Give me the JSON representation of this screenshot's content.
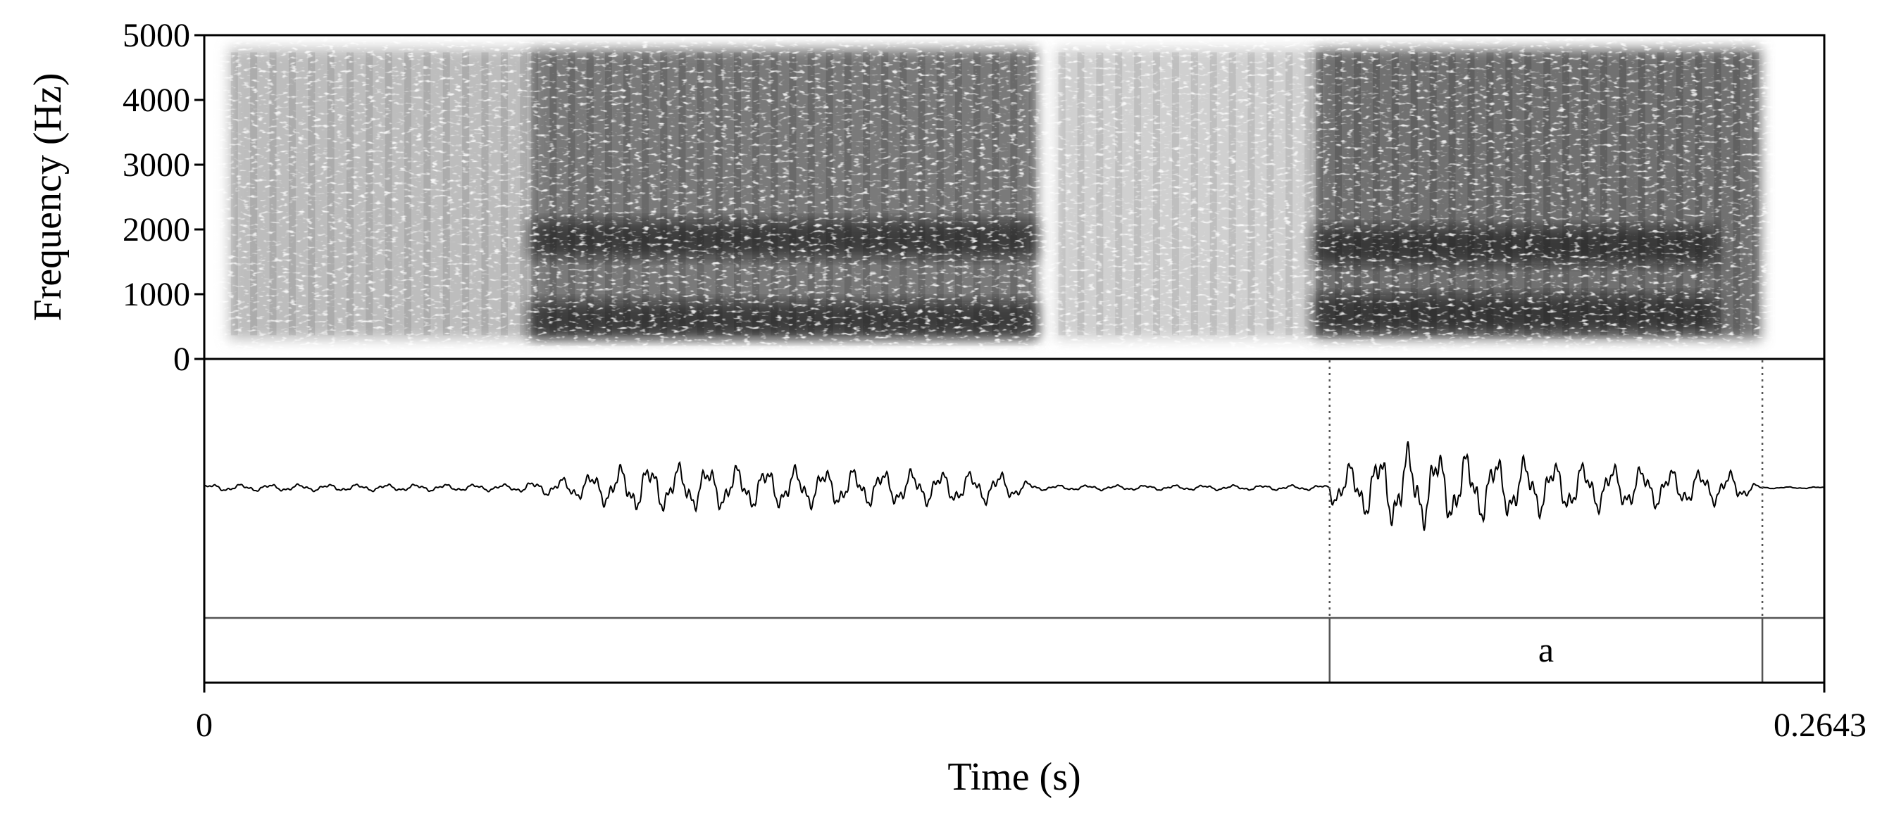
{
  "chart_data": [
    {
      "type": "spectrogram",
      "ylabel": "Frequency (Hz)",
      "ylim": [
        0,
        5000
      ],
      "yticks": [
        0,
        1000,
        2000,
        3000,
        4000,
        5000
      ],
      "xlim": [
        0,
        0.2643
      ],
      "grid": false,
      "energy_regions": [
        {
          "t_start": 0.004,
          "t_end": 0.053,
          "band_hz": [
            300,
            4800
          ],
          "darkness": 0.35
        },
        {
          "t_start": 0.053,
          "t_end": 0.136,
          "band_hz": [
            300,
            4800
          ],
          "darkness": 0.7
        },
        {
          "t_start": 0.139,
          "t_end": 0.181,
          "band_hz": [
            300,
            4800
          ],
          "darkness": 0.25
        },
        {
          "t_start": 0.181,
          "t_end": 0.254,
          "band_hz": [
            300,
            4800
          ],
          "darkness": 0.75
        }
      ],
      "formant_bands": [
        {
          "t_start": 0.053,
          "t_end": 0.136,
          "freq_hz": 600
        },
        {
          "t_start": 0.053,
          "t_end": 0.136,
          "freq_hz": 1850
        },
        {
          "t_start": 0.181,
          "t_end": 0.247,
          "freq_hz": 700
        },
        {
          "t_start": 0.181,
          "t_end": 0.247,
          "freq_hz": 1750
        }
      ]
    },
    {
      "type": "waveform",
      "xlim": [
        0,
        0.2643
      ],
      "amplitude_envelope": [
        {
          "t": 0.0,
          "a": 0.08
        },
        {
          "t": 0.05,
          "a": 0.08
        },
        {
          "t": 0.06,
          "a": 0.25
        },
        {
          "t": 0.07,
          "a": 0.55
        },
        {
          "t": 0.1,
          "a": 0.45
        },
        {
          "t": 0.13,
          "a": 0.35
        },
        {
          "t": 0.136,
          "a": 0.06
        },
        {
          "t": 0.183,
          "a": 0.06
        },
        {
          "t": 0.184,
          "a": 0.4
        },
        {
          "t": 0.195,
          "a": 0.95
        },
        {
          "t": 0.22,
          "a": 0.6
        },
        {
          "t": 0.25,
          "a": 0.35
        },
        {
          "t": 0.254,
          "a": 0.02
        },
        {
          "t": 0.2643,
          "a": 0.02
        }
      ]
    },
    {
      "type": "annotation-tier",
      "intervals": [
        {
          "label": "",
          "start": 0,
          "end": 0.1836
        },
        {
          "label": "a",
          "start": 0.1836,
          "end": 0.2542
        },
        {
          "label": "",
          "start": 0.2542,
          "end": 0.2643
        }
      ],
      "boundaries": [
        0.1836,
        0.2542
      ]
    }
  ],
  "x_axis": {
    "title": "Time (s)",
    "start_label": "0",
    "end_label": "0.2643"
  },
  "y_axis": {
    "title": "Frequency (Hz)",
    "tick_labels": [
      "0",
      "1000",
      "2000",
      "3000",
      "4000",
      "5000"
    ]
  }
}
